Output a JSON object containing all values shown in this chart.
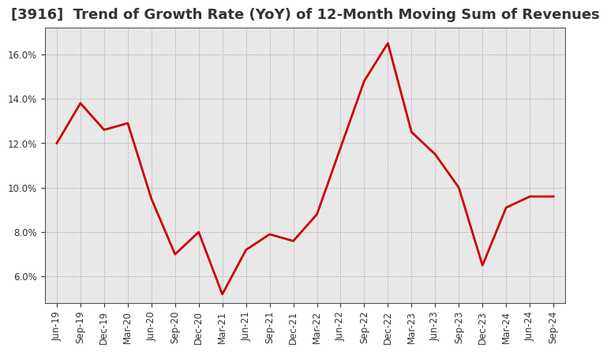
{
  "title": "[3916]  Trend of Growth Rate (YoY) of 12-Month Moving Sum of Revenues",
  "labels": [
    "Jun-19",
    "Sep-19",
    "Dec-19",
    "Mar-20",
    "Jun-20",
    "Sep-20",
    "Dec-20",
    "Mar-21",
    "Jun-21",
    "Sep-21",
    "Dec-21",
    "Mar-22",
    "Jun-22",
    "Sep-22",
    "Dec-22",
    "Mar-23",
    "Jun-23",
    "Sep-23",
    "Dec-23",
    "Mar-24",
    "Jun-24",
    "Sep-24"
  ],
  "values": [
    0.12,
    0.138,
    0.126,
    0.129,
    0.095,
    0.07,
    0.08,
    0.052,
    0.072,
    0.079,
    0.076,
    0.088,
    0.118,
    0.148,
    0.165,
    0.125,
    0.115,
    0.1,
    0.065,
    0.091,
    0.096,
    0.096
  ],
  "line_color": "#cc0000",
  "bg_color": "#e8e8e8",
  "grid_color": "#999999",
  "title_color": "#333333",
  "ylim": [
    0.048,
    0.172
  ],
  "yticks": [
    0.06,
    0.08,
    0.1,
    0.12,
    0.14,
    0.16
  ],
  "title_fontsize": 13,
  "tick_fontsize": 8.5,
  "line_width": 2.0
}
